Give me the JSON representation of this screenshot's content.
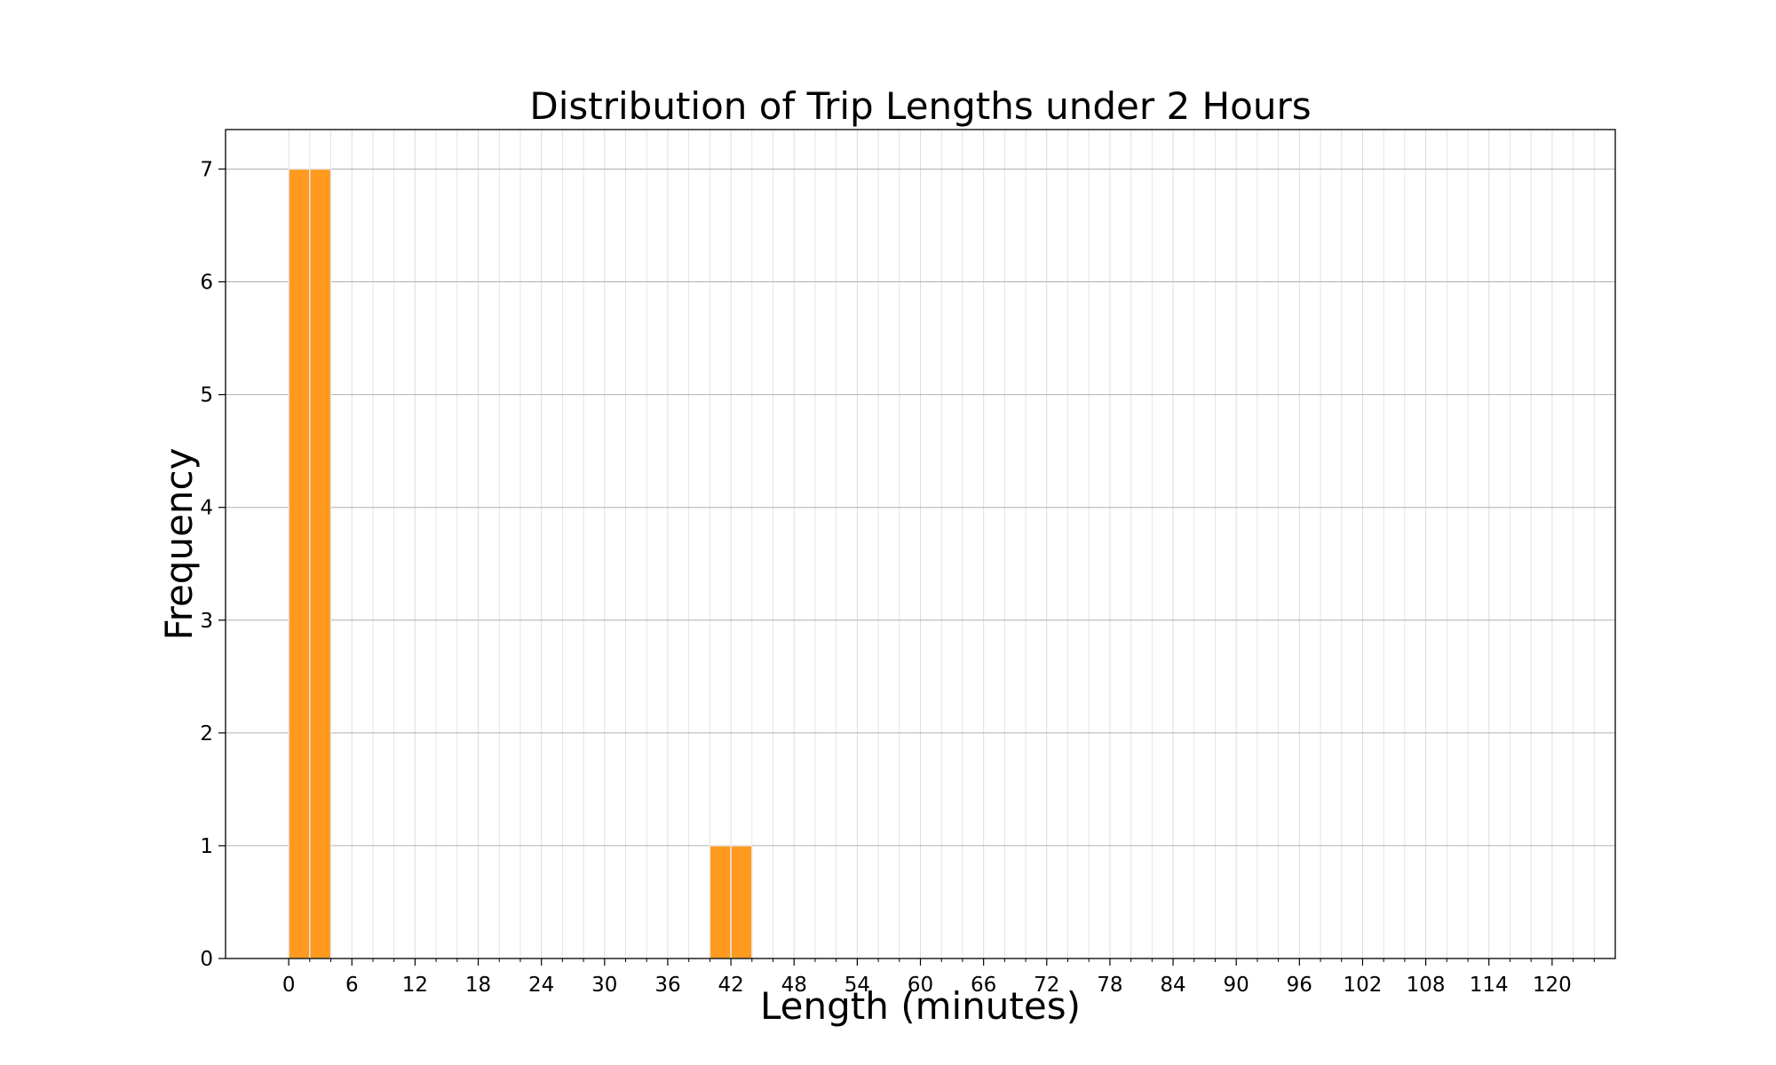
{
  "chart_data": {
    "type": "bar",
    "title": "Distribution of Trip Lengths under 2 Hours",
    "xlabel": "Length (minutes)",
    "ylabel": "Frequency",
    "bin_width": 2,
    "bins": [
      {
        "start": 0,
        "end": 2,
        "value": 7
      },
      {
        "start": 2,
        "end": 4,
        "value": 7
      },
      {
        "start": 40,
        "end": 42,
        "value": 1
      },
      {
        "start": 42,
        "end": 44,
        "value": 1
      }
    ],
    "xlim": [
      -6,
      126
    ],
    "ylim": [
      0,
      7.35
    ],
    "xticks": [
      0,
      6,
      12,
      18,
      24,
      30,
      36,
      42,
      48,
      54,
      60,
      66,
      72,
      78,
      84,
      90,
      96,
      102,
      108,
      114,
      120
    ],
    "yticks": [
      0,
      1,
      2,
      3,
      4,
      5,
      6,
      7
    ],
    "grid": true,
    "bar_color": "#ff9a1f",
    "bar_edge_color": "#e6e6e6",
    "grid_color": "#b0b0b0"
  }
}
